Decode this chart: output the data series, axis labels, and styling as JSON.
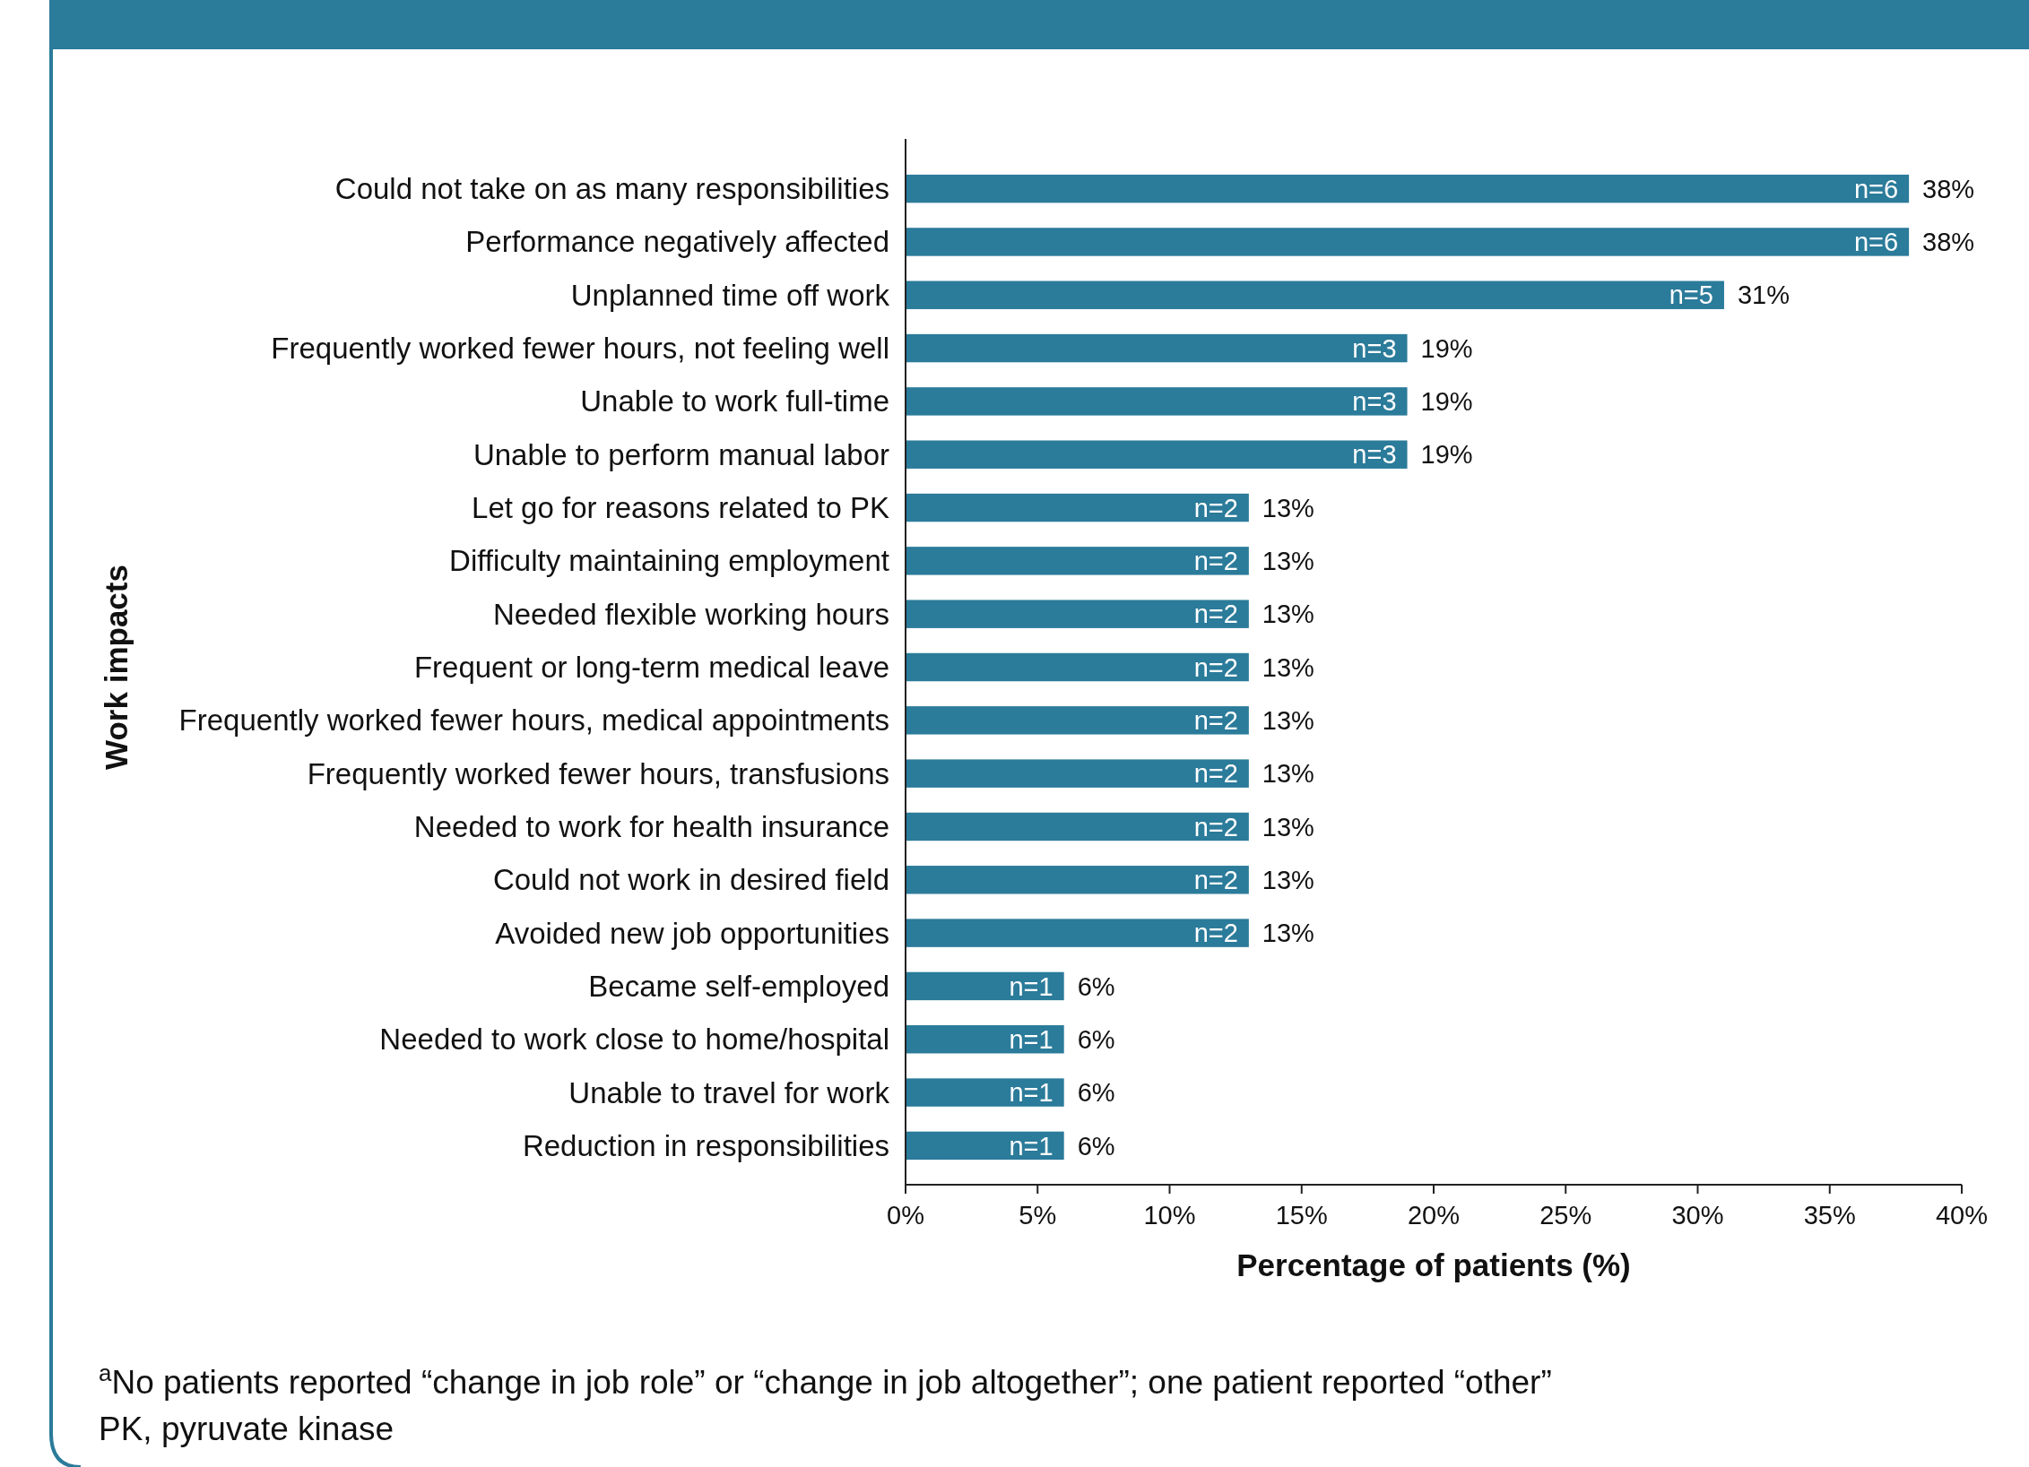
{
  "chart_data": {
    "type": "bar",
    "orientation": "horizontal",
    "xlabel": "Percentage of patients (%)",
    "ylabel": "Work impacts",
    "categories": [
      "Could not take on as many responsibilities",
      "Performance negatively affected",
      "Unplanned time off work",
      "Frequently worked fewer hours, not feeling well",
      "Unable to work full-time",
      "Unable to perform manual labor",
      "Let go for reasons related to PK",
      "Difficulty maintaining employment",
      "Needed flexible working hours",
      "Frequent or long-term medical leave",
      "Frequently worked fewer hours, medical appointments",
      "Frequently worked fewer hours, transfusions",
      "Needed to work for health insurance",
      "Could not work in desired field",
      "Avoided new job opportunities",
      "Became self-employed",
      "Needed to work close to home/hospital",
      "Unable to travel for work",
      "Reduction in responsibilities"
    ],
    "values": [
      38,
      38,
      31,
      19,
      19,
      19,
      13,
      13,
      13,
      13,
      13,
      13,
      13,
      13,
      13,
      6,
      6,
      6,
      6
    ],
    "value_labels": [
      "38%",
      "38%",
      "31%",
      "19%",
      "19%",
      "19%",
      "13%",
      "13%",
      "13%",
      "13%",
      "13%",
      "13%",
      "13%",
      "13%",
      "13%",
      "6%",
      "6%",
      "6%",
      "6%"
    ],
    "color": "#2b7b9a",
    "xlim": [
      0,
      40
    ],
    "xticks": [
      {
        "value": 0,
        "label": "0%"
      },
      {
        "value": 5,
        "label": "5%"
      },
      {
        "value": 10,
        "label": "10%"
      },
      {
        "value": 15,
        "label": "15%"
      },
      {
        "value": 20,
        "label": "20%"
      },
      {
        "value": 25,
        "label": "25%"
      },
      {
        "value": 30,
        "label": "30%"
      },
      {
        "value": 35,
        "label": "35%"
      },
      {
        "value": 40,
        "label": "40%"
      }
    ],
    "grid": false,
    "annotations": [
      {
        "text": "n=6",
        "x": 38,
        "y": "Could not take on as many responsibilities"
      },
      {
        "text": "n=6",
        "x": 38,
        "y": "Performance negatively affected"
      },
      {
        "text": "n=5",
        "x": 31,
        "y": "Unplanned time off work"
      },
      {
        "text": "n=3",
        "x": 19,
        "y": "Frequently worked fewer hours, not feeling well"
      },
      {
        "text": "n=3",
        "x": 19,
        "y": "Unable to work full-time"
      },
      {
        "text": "n=3",
        "x": 19,
        "y": "Unable to perform manual labor"
      },
      {
        "text": "n=2",
        "x": 13,
        "y": "Let go for reasons related to PK"
      },
      {
        "text": "n=2",
        "x": 13,
        "y": "Difficulty maintaining employment"
      },
      {
        "text": "n=2",
        "x": 13,
        "y": "Needed flexible working hours"
      },
      {
        "text": "n=2",
        "x": 13,
        "y": "Frequent or long-term medical leave"
      },
      {
        "text": "n=2",
        "x": 13,
        "y": "Frequently worked fewer hours, medical appointments"
      },
      {
        "text": "n=2",
        "x": 13,
        "y": "Frequently worked fewer hours, transfusions"
      },
      {
        "text": "n=2",
        "x": 13,
        "y": "Needed to work for health insurance"
      },
      {
        "text": "n=2",
        "x": 13,
        "y": "Could not work in desired field"
      },
      {
        "text": "n=2",
        "x": 13,
        "y": "Avoided new job opportunities"
      },
      {
        "text": "n=1",
        "x": 6,
        "y": "Became self-employed"
      },
      {
        "text": "n=1",
        "x": 6,
        "y": "Needed to work close to home/hospital"
      },
      {
        "text": "n=1",
        "x": 6,
        "y": "Unable to travel for work"
      },
      {
        "text": "n=1",
        "x": 6,
        "y": "Reduction in responsibilities"
      },
      "$^{a}$No patients reported “change in job role” or “change in job altogether”; one patient reported “other”",
      "PK, pyruvate kinase"
    ]
  }
}
